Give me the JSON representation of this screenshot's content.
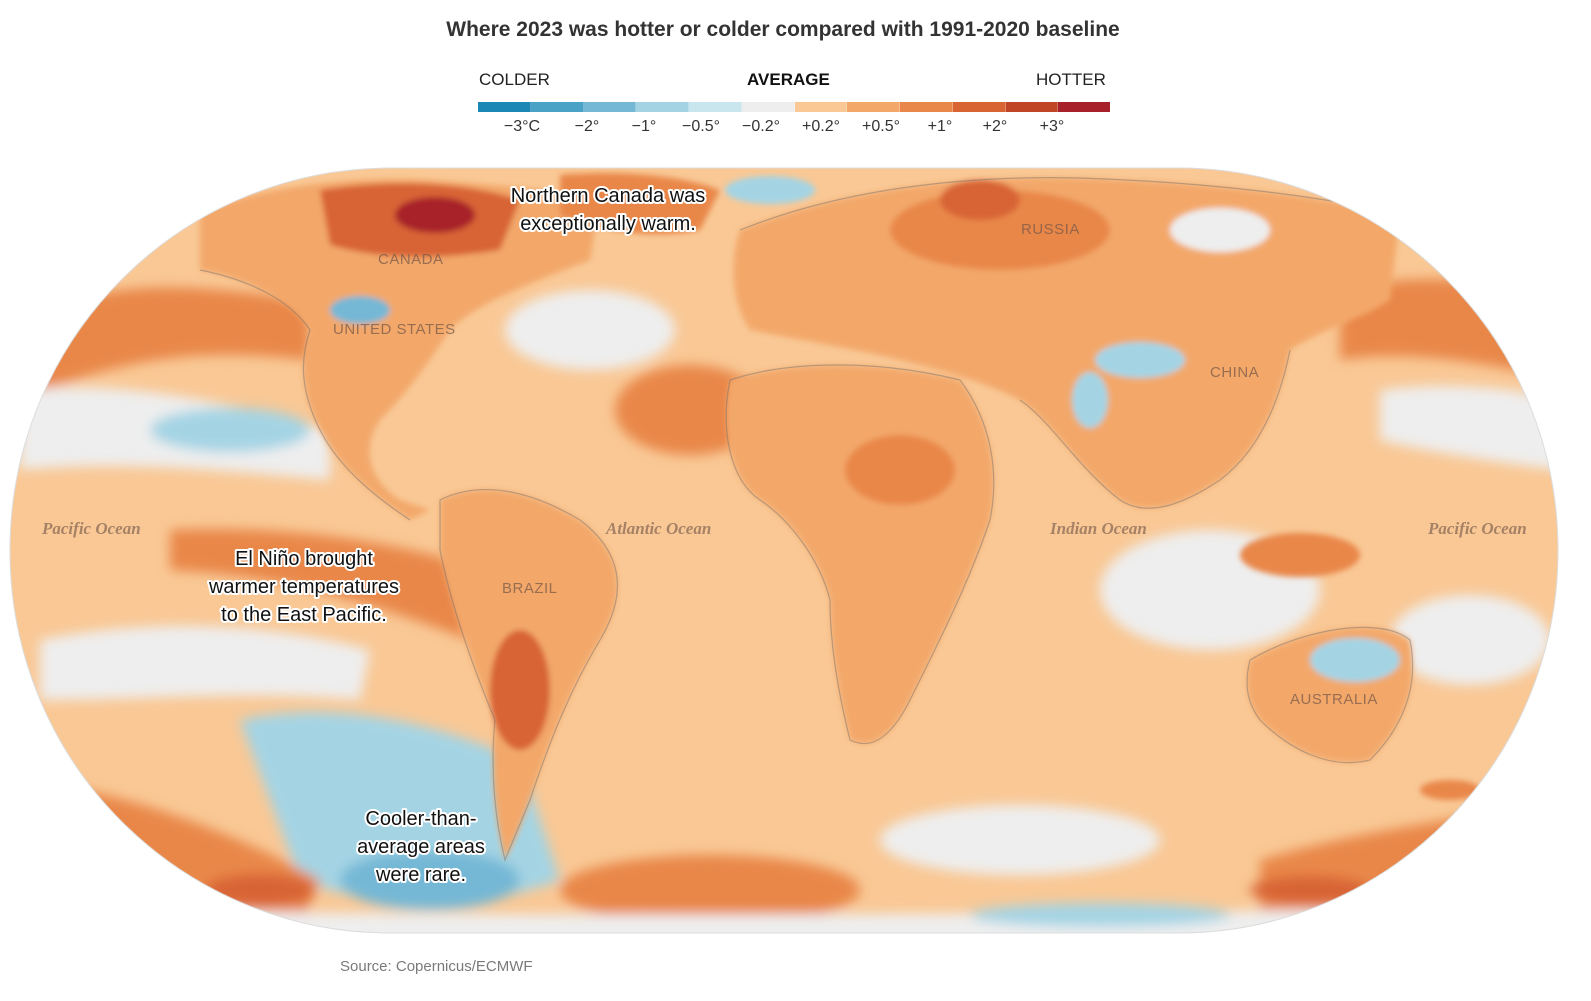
{
  "title": "Where 2023 was hotter or colder compared with 1991-2020 baseline",
  "legend": {
    "colder_label": "COLDER",
    "average_label": "AVERAGE",
    "hotter_label": "HOTTER",
    "swatch_colors": [
      "#1a87b5",
      "#4aa2c6",
      "#74b8d6",
      "#a4d4e4",
      "#c9e6ee",
      "#eeeeee",
      "#f9c895",
      "#f3a86a",
      "#e9874a",
      "#d86434",
      "#c04527",
      "#a8202a"
    ],
    "ticks": [
      "−3°C",
      "−2°",
      "−1°",
      "−0.5°",
      "−0.2°",
      "+0.2°",
      "+0.5°",
      "+1°",
      "+2°",
      "+3°"
    ]
  },
  "colors": {
    "ocean_base": "#f9c895",
    "land_base": "#f3a86a",
    "average": "#eeeeee",
    "cold_light": "#a4d4e4",
    "cold_mid": "#74b8d6",
    "warm": "#f3a86a",
    "warmer": "#e9874a",
    "hot": "#d86434",
    "hottest": "#a8202a"
  },
  "labels": {
    "pacific_west": "Pacific Ocean",
    "atlantic": "Atlantic Ocean",
    "indian": "Indian Ocean",
    "pacific_east": "Pacific Ocean",
    "canada": "CANADA",
    "united_states": "UNITED STATES",
    "brazil": "BRAZIL",
    "russia": "RUSSIA",
    "china": "CHINA",
    "australia": "AUSTRALIA"
  },
  "annotations": {
    "canada_line1": "Northern Canada was",
    "canada_line2": "exceptionally warm.",
    "elnino_line1": "El Niño brought",
    "elnino_line2": "warmer temperatures",
    "elnino_line3": "to the East Pacific.",
    "cool_line1": "Cooler-than-",
    "cool_line2": "average areas",
    "cool_line3": "were rare."
  },
  "source": "Source: Copernicus/ECMWF"
}
